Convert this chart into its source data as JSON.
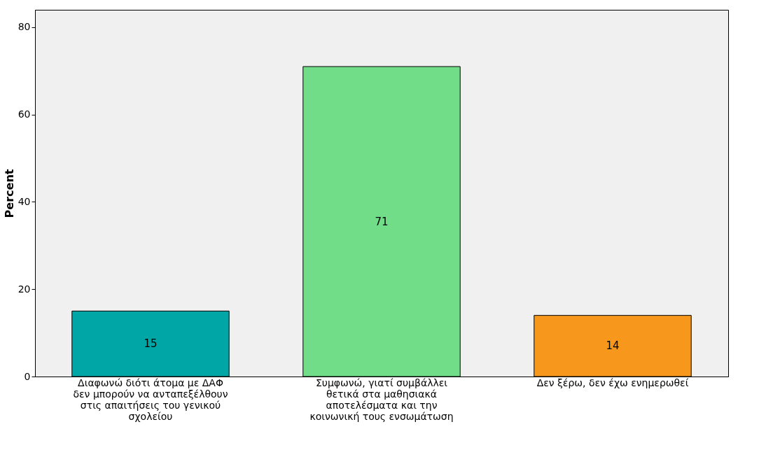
{
  "chart_data": {
    "type": "bar",
    "ylabel": "Percent",
    "categories": [
      "Διαφωνώ διότι άτομα με ΔΑΦ δεν μπορούν να ανταπεξέλθουν στις απαιτήσεις του γενικού σχολείου",
      "Συμφωνώ, γιατί συμβάλλει θετικά στα μαθησιακά αποτελέσματα και την κοινωνική τους ενσωμάτωση",
      "Δεν ξέρω, δεν έχω ενημερωθεί"
    ],
    "values": [
      15,
      71,
      14
    ],
    "colors": [
      "#00a5a5",
      "#72dd88",
      "#f7981d"
    ],
    "ylim": [
      0,
      84
    ],
    "yticks": [
      0,
      20,
      40,
      60,
      80
    ],
    "data_labels": true,
    "grid": false
  }
}
